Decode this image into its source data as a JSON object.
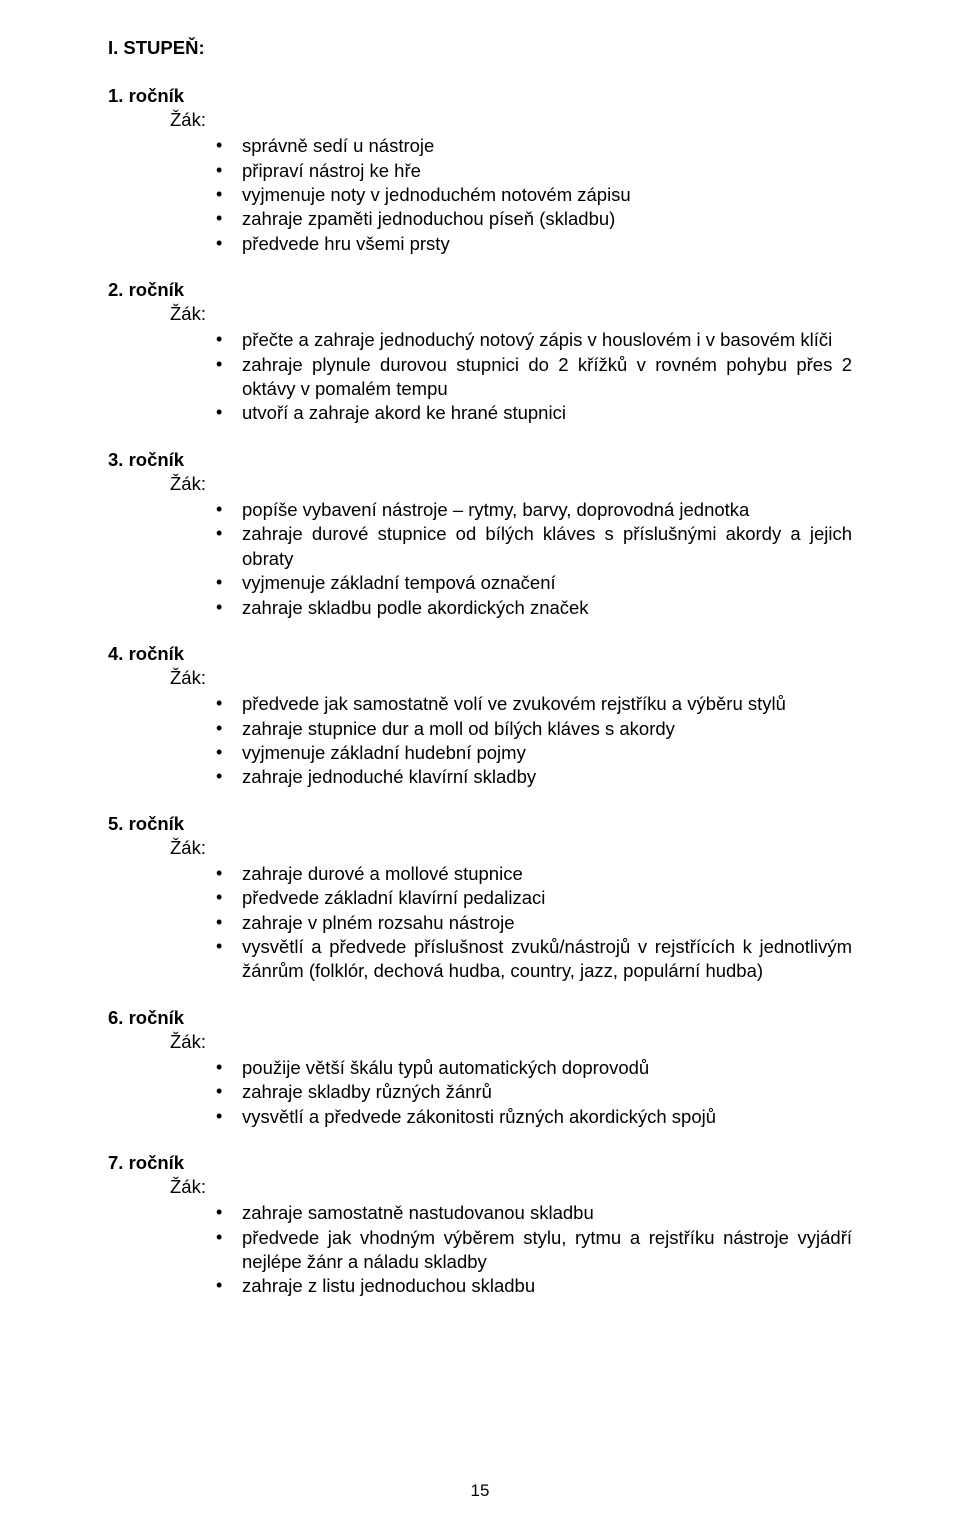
{
  "page": {
    "heading": "I. STUPEŇ:",
    "zak_label": "Žák:",
    "page_number": "15",
    "font_family": "Arial",
    "font_size_pt": 14,
    "text_color": "#000000",
    "background_color": "#ffffff"
  },
  "sections": [
    {
      "label": "1. ročník",
      "items": [
        "správně sedí u nástroje",
        "připraví nástroj ke hře",
        "vyjmenuje noty v jednoduchém notovém zápisu",
        "zahraje zpaměti jednoduchou píseň (skladbu)",
        "předvede hru všemi prsty"
      ]
    },
    {
      "label": "2. ročník",
      "items": [
        "přečte a zahraje jednoduchý notový zápis v houslovém i v basovém klíči",
        "zahraje plynule durovou stupnici do 2 křížků v rovném pohybu přes 2 oktávy v pomalém tempu",
        "utvoří a zahraje akord ke hrané stupnici"
      ]
    },
    {
      "label": "3. ročník",
      "items": [
        "popíše vybavení nástroje – rytmy, barvy, doprovodná jednotka",
        "zahraje durové stupnice od bílých kláves s příslušnými akordy a jejich obraty",
        "vyjmenuje základní tempová označení",
        "zahraje skladbu podle akordických značek"
      ]
    },
    {
      "label": "4. ročník",
      "items": [
        "předvede jak samostatně volí ve zvukovém rejstříku a výběru stylů",
        "zahraje stupnice dur a moll od bílých kláves s akordy",
        "vyjmenuje základní hudební pojmy",
        "zahraje jednoduché klavírní skladby"
      ]
    },
    {
      "label": "5. ročník",
      "items": [
        "zahraje durové a mollové stupnice",
        "předvede základní klavírní pedalizaci",
        "zahraje v plném rozsahu nástroje",
        "vysvětlí a předvede příslušnost zvuků/nástrojů v rejstřících k jednotlivým žánrům (folklór, dechová hudba, country, jazz, populární hudba)"
      ]
    },
    {
      "label": "6. ročník",
      "items": [
        "použije větší škálu typů automatických doprovodů",
        "zahraje skladby různých žánrů",
        "vysvětlí a předvede zákonitosti různých akordických spojů"
      ]
    },
    {
      "label": "7. ročník",
      "items": [
        "zahraje samostatně nastudovanou skladbu",
        "předvede jak vhodným výběrem stylu, rytmu a rejstříku nástroje vyjádří nejlépe žánr a náladu skladby",
        "zahraje z listu jednoduchou skladbu"
      ]
    }
  ]
}
